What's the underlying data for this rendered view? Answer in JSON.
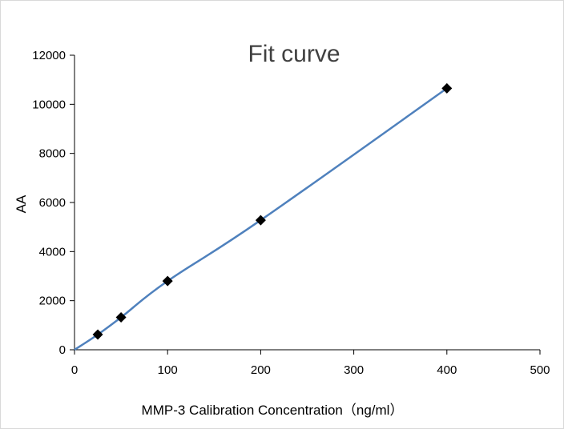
{
  "chart_data": {
    "type": "scatter",
    "title": "Fit curve",
    "xlabel": "MMP-3 Calibration Concentration（ng/ml）",
    "ylabel": "AA",
    "xlim": [
      0,
      500
    ],
    "ylim": [
      0,
      12000
    ],
    "xticks": [
      0,
      100,
      200,
      300,
      400,
      500
    ],
    "yticks": [
      0,
      2000,
      4000,
      6000,
      8000,
      10000,
      12000
    ],
    "grid": false,
    "legend": "none",
    "series": [
      {
        "kind": "points",
        "marker": "diamond",
        "color": "#000000",
        "x": [
          25,
          50,
          100,
          200,
          400
        ],
        "y": [
          620,
          1320,
          2800,
          5280,
          10650
        ]
      },
      {
        "kind": "fit-line",
        "color": "#4f81bd",
        "x": [
          0,
          25,
          50,
          100,
          200,
          400
        ],
        "y": [
          0,
          620,
          1320,
          2800,
          5280,
          10650
        ]
      }
    ]
  }
}
